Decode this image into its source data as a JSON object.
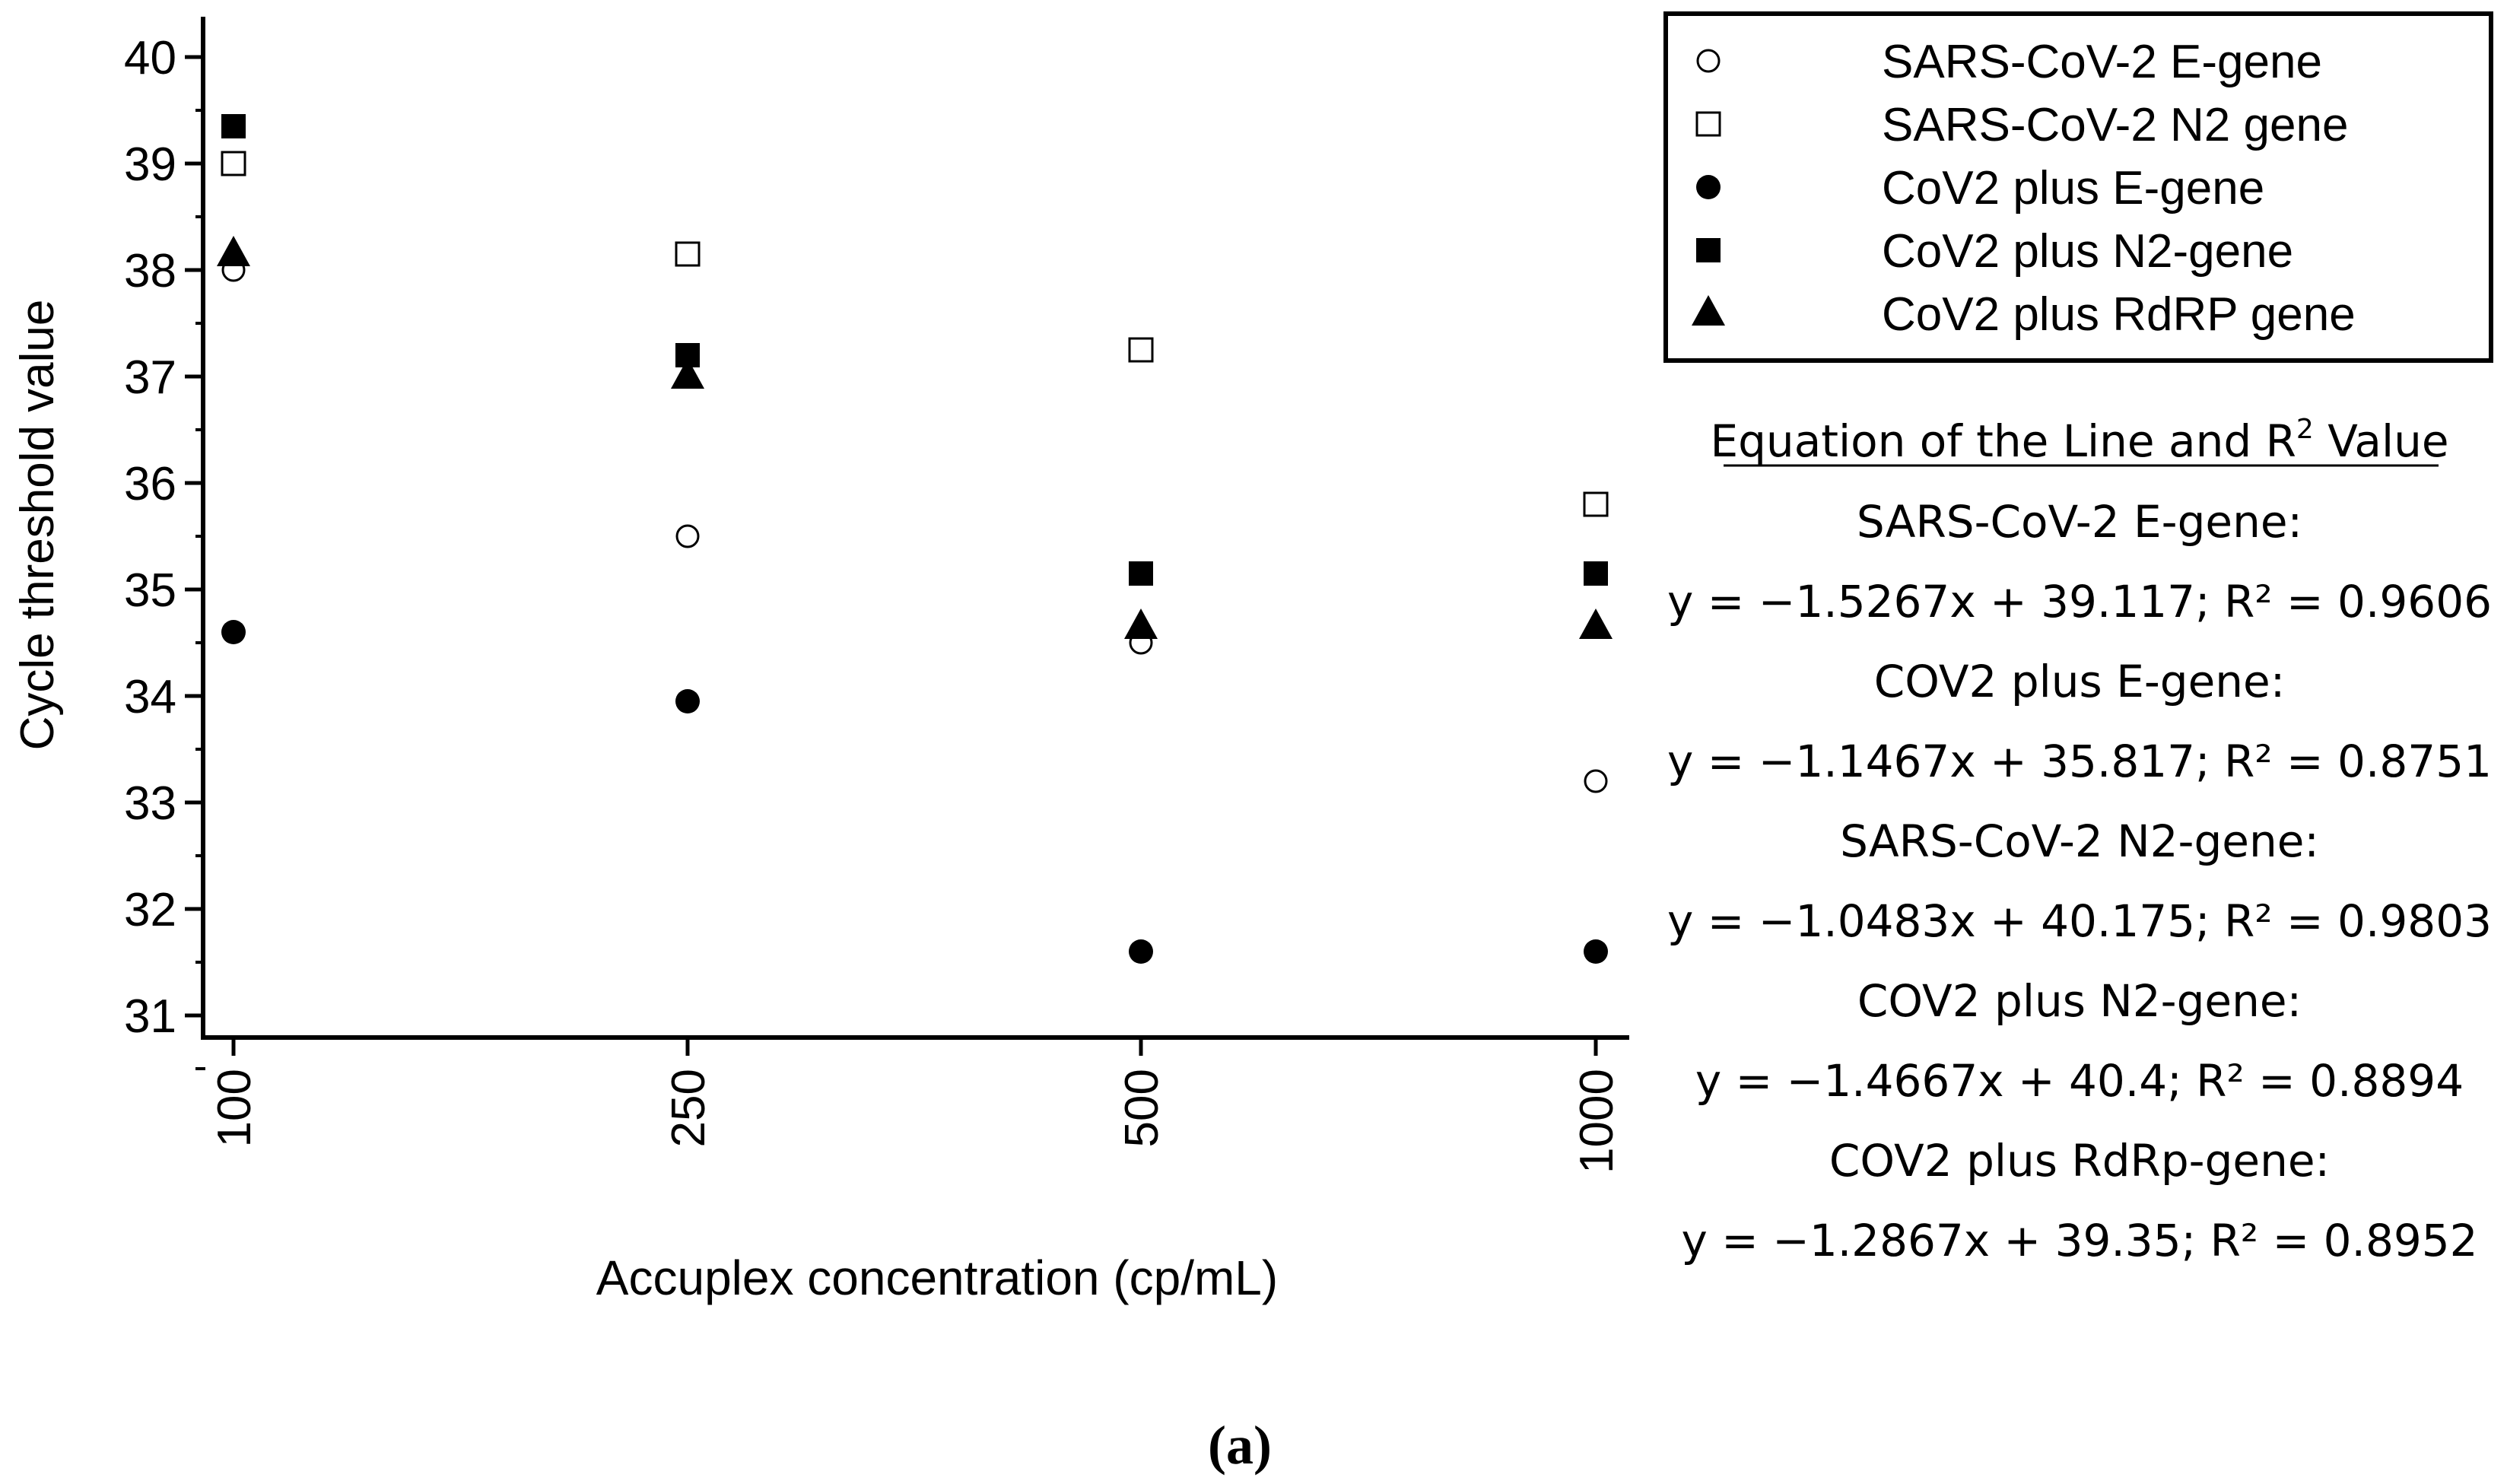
{
  "chart_data": {
    "type": "scatter",
    "x_categories": [
      "100",
      "250",
      "500",
      "1000"
    ],
    "xlabel": "Accuplex concentration (cp/mL)",
    "ylabel": "Cycle threshold value",
    "ylim": [
      30.7,
      40.3
    ],
    "yticks": [
      "31",
      "32",
      "33",
      "34",
      "35",
      "36",
      "37",
      "38",
      "39",
      "40"
    ],
    "grid": false,
    "legend_position": "top-right",
    "series": [
      {
        "name": "SARS-CoV-2 E-gene",
        "marker": "open-circle",
        "values": [
          38.0,
          35.5,
          34.5,
          33.2
        ]
      },
      {
        "name": "SARS-CoV-2 N2 gene",
        "marker": "open-square",
        "values": [
          39.0,
          38.15,
          37.25,
          35.8
        ]
      },
      {
        "name": "CoV2 plus E-gene",
        "marker": "filled-circle",
        "values": [
          34.6,
          33.95,
          31.6,
          31.6
        ]
      },
      {
        "name": "CoV2 plus N2-gene",
        "marker": "filled-square",
        "values": [
          39.35,
          37.2,
          35.15,
          35.15
        ]
      },
      {
        "name": "CoV2 plus RdRP gene",
        "marker": "filled-triangle",
        "values": [
          38.15,
          37.0,
          34.65,
          34.65
        ]
      }
    ]
  },
  "equations": {
    "heading": "Equation of the Line and R",
    "heading_sup": "2",
    "heading_tail": " Value",
    "items": [
      {
        "label": "SARS-CoV-2 E-gene:",
        "equation": "y = −1.5267x + 39.117; R² = 0.9606"
      },
      {
        "label": "COV2 plus E-gene:",
        "equation": "y = −1.1467x + 35.817; R² = 0.8751"
      },
      {
        "label": "SARS-CoV-2 N2-gene:",
        "equation": "y = −1.0483x + 40.175; R² = 0.9803"
      },
      {
        "label": "COV2 plus N2-gene:",
        "equation": "y = −1.4667x + 40.4; R² = 0.8894"
      },
      {
        "label": "COV2 plus RdRp-gene:",
        "equation": "y = −1.2867x + 39.35; R² = 0.8952"
      }
    ]
  },
  "caption": "(a)"
}
